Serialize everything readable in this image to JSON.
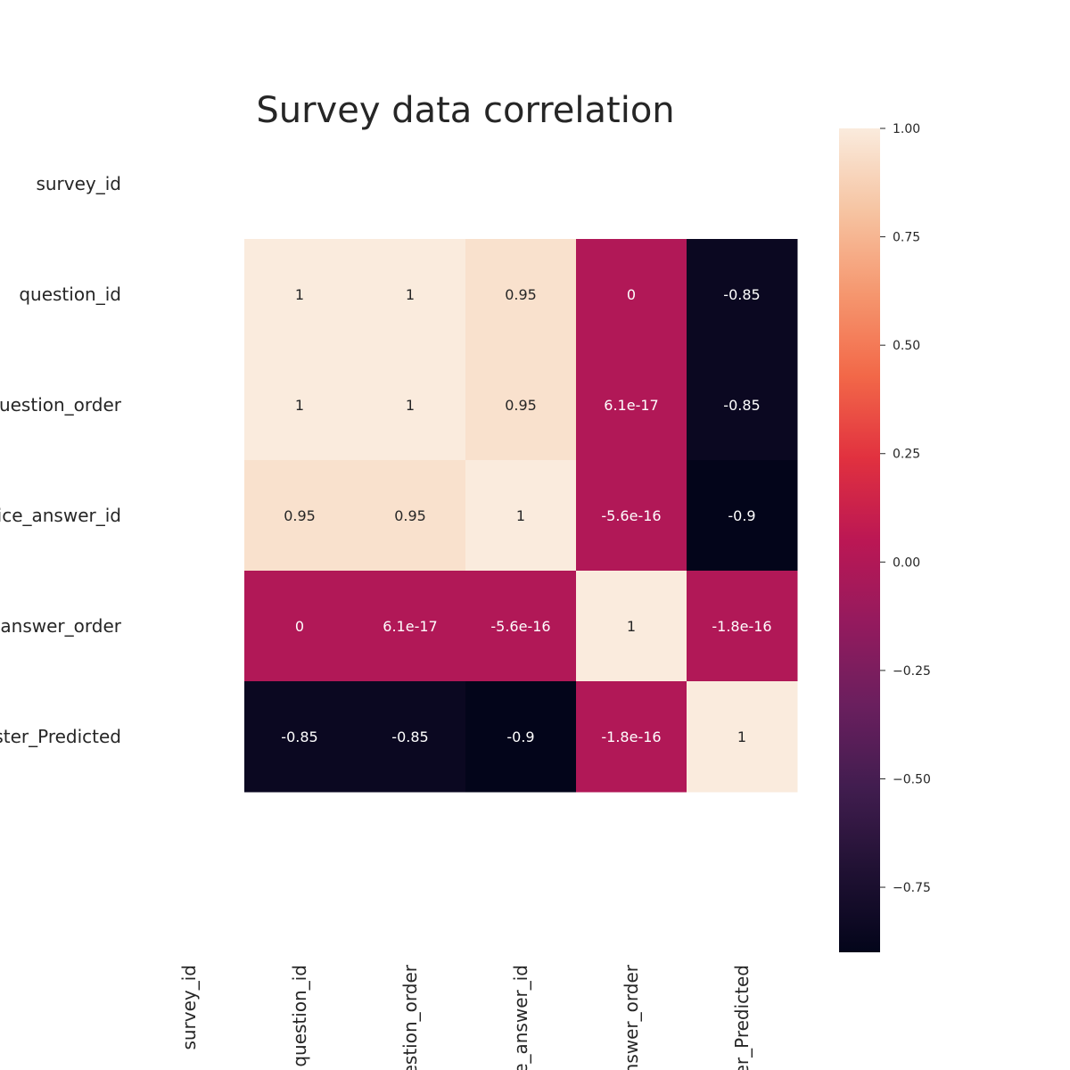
{
  "chart_data": {
    "type": "heatmap",
    "title": "Survey data correlation",
    "row_labels": [
      "survey_id",
      "question_id",
      "question_order",
      "choice_answer_id",
      "answer_order",
      "Cluster_Predicted"
    ],
    "col_labels": [
      "survey_id",
      "question_id",
      "question_order",
      "choice_answer_id",
      "answer_order",
      "Cluster_Predicted"
    ],
    "values": [
      [
        null,
        null,
        null,
        null,
        null,
        null
      ],
      [
        null,
        1,
        1,
        0.95,
        0,
        -0.85
      ],
      [
        null,
        1,
        1,
        0.95,
        6.1e-17,
        -0.85
      ],
      [
        null,
        0.95,
        0.95,
        1,
        -5.6e-16,
        -0.9
      ],
      [
        null,
        0,
        6.1e-17,
        -5.6e-16,
        1,
        -1.8e-16
      ],
      [
        null,
        -0.85,
        -0.85,
        -0.9,
        -1.8e-16,
        1
      ]
    ],
    "annotations": [
      [
        "",
        "",
        "",
        "",
        "",
        ""
      ],
      [
        "",
        "1",
        "1",
        "0.95",
        "0",
        "-0.85"
      ],
      [
        "",
        "1",
        "1",
        "0.95",
        "6.1e-17",
        "-0.85"
      ],
      [
        "",
        "0.95",
        "0.95",
        "1",
        "-5.6e-16",
        "-0.9"
      ],
      [
        "",
        "0",
        "6.1e-17",
        "-5.6e-16",
        "1",
        "-1.8e-16"
      ],
      [
        "",
        "-0.85",
        "-0.85",
        "-0.9",
        "-1.8e-16",
        "1"
      ]
    ],
    "colorbar": {
      "colormap": "rocket",
      "vmin": -0.9,
      "vmax": 1.0,
      "ticks": [
        1.0,
        0.75,
        0.5,
        0.25,
        0.0,
        -0.25,
        -0.5,
        -0.75
      ],
      "tick_labels": [
        "1.00",
        "0.75",
        "0.50",
        "0.25",
        "0.00",
        "−0.25",
        "−0.50",
        "−0.75"
      ]
    },
    "grid": false,
    "legend": "colorbar-right"
  }
}
